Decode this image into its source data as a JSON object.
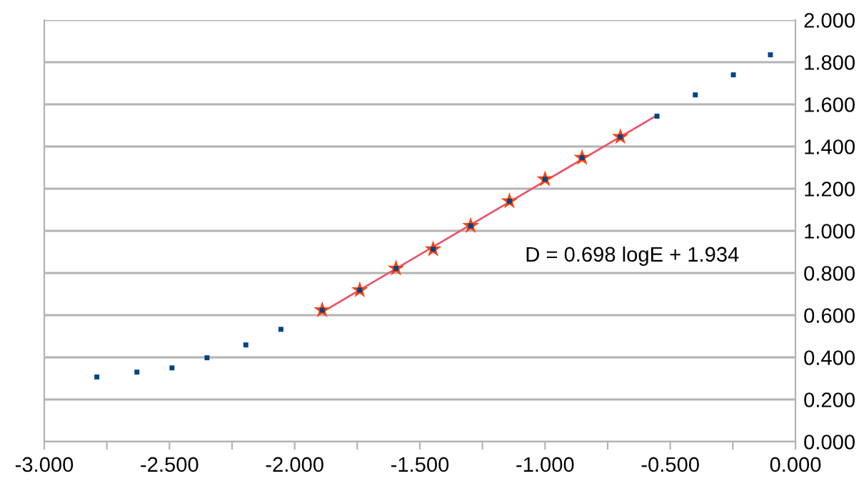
{
  "chart_data": {
    "type": "scatter",
    "xlim": [
      -3.0,
      0.0
    ],
    "ylim": [
      0.0,
      2.0
    ],
    "xticks": [
      {
        "value": -3.0,
        "label": "-3.000"
      },
      {
        "value": -2.75,
        "label": null
      },
      {
        "value": -2.5,
        "label": "-2.500"
      },
      {
        "value": -2.25,
        "label": null
      },
      {
        "value": -2.0,
        "label": "-2.000"
      },
      {
        "value": -1.75,
        "label": null
      },
      {
        "value": -1.5,
        "label": "-1.500"
      },
      {
        "value": -1.25,
        "label": null
      },
      {
        "value": -1.0,
        "label": "-1.000"
      },
      {
        "value": -0.75,
        "label": null
      },
      {
        "value": -0.5,
        "label": "-0.500"
      },
      {
        "value": -0.25,
        "label": null
      },
      {
        "value": 0.0,
        "label": "0.000"
      }
    ],
    "yticks": [
      {
        "value": 0.0,
        "label": "0.000"
      },
      {
        "value": 0.2,
        "label": "0.200"
      },
      {
        "value": 0.4,
        "label": "0.400"
      },
      {
        "value": 0.6,
        "label": "0.600"
      },
      {
        "value": 0.8,
        "label": "0.800"
      },
      {
        "value": 1.0,
        "label": "1.000"
      },
      {
        "value": 1.2,
        "label": "1.200"
      },
      {
        "value": 1.4,
        "label": "1.400"
      },
      {
        "value": 1.6,
        "label": "1.600"
      },
      {
        "value": 1.8,
        "label": "1.800"
      },
      {
        "value": 2.0,
        "label": "2.000"
      }
    ],
    "grid": "y",
    "annotations": [
      "D = 0.698 logE + 1.934"
    ],
    "series": [
      {
        "type": "line",
        "color": "#e8546a",
        "marker": "none",
        "line_style": "solid",
        "x": [
          -1.89,
          -0.553
        ],
        "values": [
          0.615,
          1.548
        ]
      },
      {
        "type": "scatter",
        "color": "#ff420e",
        "marker": "star",
        "x": [
          -1.89,
          -1.74,
          -1.595,
          -1.447,
          -1.297,
          -1.142,
          -1.0,
          -0.852,
          -0.699
        ],
        "values": [
          0.624,
          0.719,
          0.822,
          0.913,
          1.024,
          1.141,
          1.245,
          1.347,
          1.446
        ]
      },
      {
        "type": "scatter",
        "color": "#004586",
        "marker": "square",
        "x": [
          -2.79,
          -2.63,
          -2.49,
          -2.35,
          -2.195,
          -2.055,
          -1.89,
          -1.74,
          -1.595,
          -1.447,
          -1.297,
          -1.142,
          -1.0,
          -0.852,
          -0.699,
          -0.553,
          -0.4,
          -0.248,
          -0.1
        ],
        "values": [
          0.307,
          0.33,
          0.35,
          0.398,
          0.459,
          0.533,
          0.624,
          0.719,
          0.822,
          0.913,
          1.024,
          1.141,
          1.245,
          1.347,
          1.446,
          1.544,
          1.645,
          1.74,
          1.835
        ]
      }
    ]
  }
}
